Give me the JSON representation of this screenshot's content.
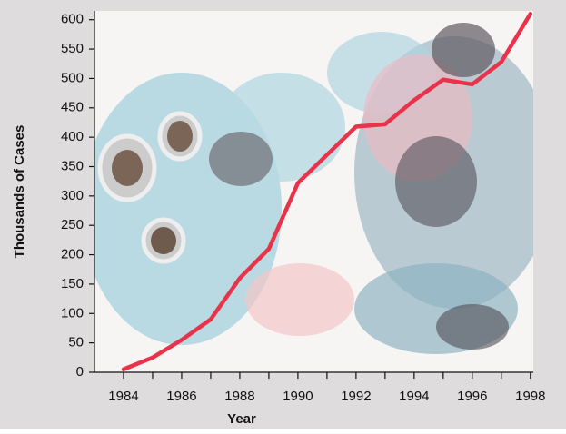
{
  "chart_data": {
    "type": "line",
    "x_label": "Year",
    "y_label": "Thousands of Cases",
    "x": [
      1984,
      1985,
      1986,
      1987,
      1988,
      1989,
      1990,
      1991,
      1992,
      1993,
      1994,
      1995,
      1996,
      1997,
      1998
    ],
    "series": [
      {
        "color": "#e8334a",
        "values": [
          5,
          25,
          55,
          90,
          160,
          210,
          322,
          370,
          418,
          422,
          463,
          498,
          490,
          528,
          610
        ]
      }
    ],
    "xlim": [
      1983,
      1998.1
    ],
    "xticks": [
      1984,
      1986,
      1988,
      1990,
      1992,
      1994,
      1996,
      1998
    ],
    "xticks_minor": [
      1985,
      1987,
      1989,
      1991,
      1993,
      1995,
      1997
    ],
    "ylim": [
      0,
      615
    ],
    "yticks": [
      0,
      50,
      100,
      150,
      200,
      250,
      300,
      350,
      400,
      450,
      500,
      550,
      600
    ],
    "grid": false
  }
}
